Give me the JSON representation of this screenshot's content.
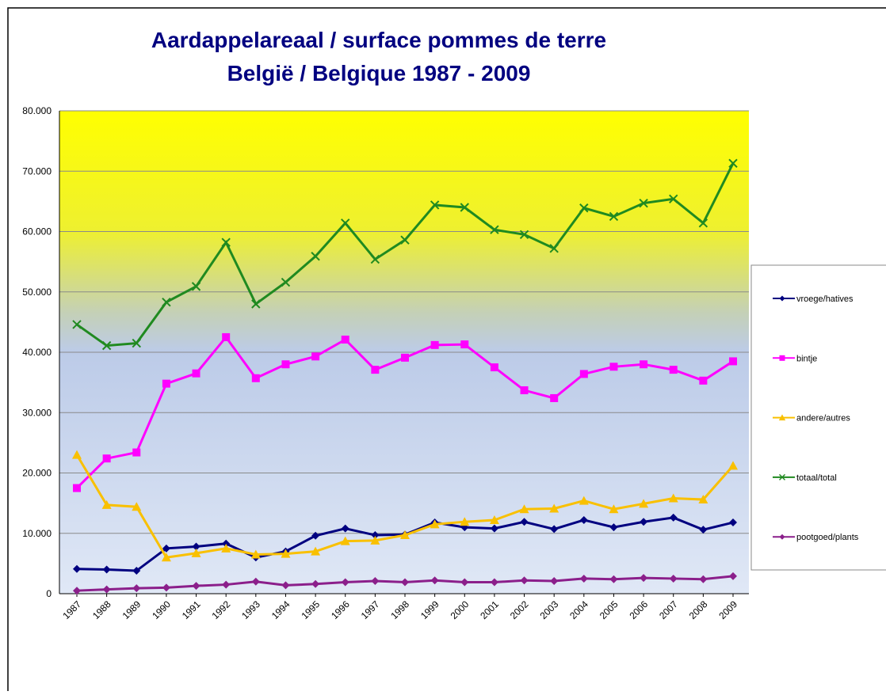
{
  "chart_data": {
    "type": "line",
    "title": [
      "Aardappelareaal / surface pommes de terre",
      "België / Belgique 1987 - 2009"
    ],
    "categories": [
      "1987",
      "1988",
      "1989",
      "1990",
      "1991",
      "1992",
      "1993",
      "1994",
      "1995",
      "1996",
      "1997",
      "1998",
      "1999",
      "2000",
      "2001",
      "2002",
      "2003",
      "2004",
      "2005",
      "2006",
      "2007",
      "2008",
      "2009"
    ],
    "ylim": [
      0,
      80000
    ],
    "yticks": [
      0,
      {
        "value": 10000,
        "label": "10.000"
      },
      {
        "value": 20000,
        "label": "20.000"
      },
      {
        "value": 30000,
        "label": "30.000"
      },
      {
        "value": 40000,
        "label": "40.000"
      },
      {
        "value": 50000,
        "label": "50.000"
      },
      {
        "value": 60000,
        "label": "60.000"
      },
      {
        "value": 70000,
        "label": "70.000"
      },
      {
        "value": 80000,
        "label": "80.000"
      }
    ],
    "grid": true,
    "legend": "right",
    "series": [
      {
        "name": "vroege/hatives",
        "color": "#000080",
        "marker": "diamond",
        "values": [
          4100,
          4000,
          3800,
          7500,
          7800,
          8300,
          6000,
          7000,
          9600,
          10800,
          9700,
          9800,
          11800,
          11000,
          10800,
          11900,
          10700,
          12200,
          11000,
          11900,
          12600,
          10600,
          11800
        ]
      },
      {
        "name": "bintje",
        "color": "#ff00ff",
        "marker": "square",
        "values": [
          17500,
          22400,
          23400,
          34800,
          36500,
          42500,
          35700,
          38000,
          39300,
          42100,
          37100,
          39100,
          41200,
          41300,
          37500,
          33700,
          32400,
          36400,
          37600,
          38000,
          37100,
          35300,
          38500
        ]
      },
      {
        "name": "andere/autres",
        "color": "#f9c000",
        "marker": "triangle",
        "values": [
          23000,
          14700,
          14400,
          6000,
          6700,
          7500,
          6500,
          6600,
          7000,
          8700,
          8800,
          9700,
          11500,
          11900,
          12200,
          14000,
          14100,
          15400,
          14000,
          14900,
          15800,
          15600,
          21200
        ]
      },
      {
        "name": "totaal/total",
        "color": "#208a20",
        "marker": "x",
        "values": [
          44600,
          41100,
          41500,
          48300,
          50900,
          58200,
          48000,
          51600,
          55900,
          61400,
          55400,
          58600,
          64400,
          64000,
          60300,
          59500,
          57200,
          63900,
          62500,
          64700,
          65400,
          61400,
          71300
        ]
      },
      {
        "name": "pootgoed/plants",
        "color": "#8b1f8b",
        "marker": "diamond",
        "values": [
          500,
          700,
          900,
          1000,
          1300,
          1500,
          2000,
          1400,
          1600,
          1900,
          2100,
          1900,
          2200,
          1900,
          1900,
          2200,
          2100,
          2500,
          2400,
          2600,
          2500,
          2400,
          2900
        ]
      }
    ]
  }
}
